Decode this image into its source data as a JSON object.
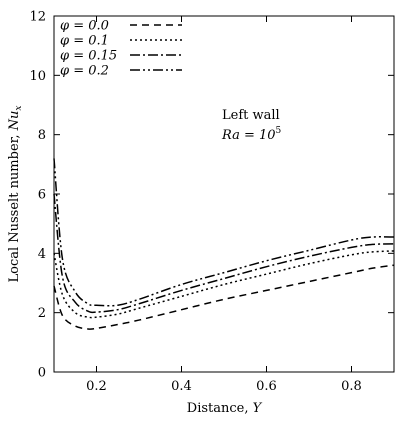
{
  "chart_data": {
    "type": "line",
    "xlabel": "Distance, Y",
    "ylabel": "Local Nusselt number, Nu_x",
    "xlim": [
      0.1,
      0.9
    ],
    "ylim": [
      0,
      12
    ],
    "xticks": [
      0.2,
      0.4,
      0.6,
      0.8
    ],
    "xtick_labels": [
      "0.2",
      "0.4",
      "0.6",
      "0.8"
    ],
    "yticks": [
      0,
      2,
      4,
      6,
      8,
      10,
      12
    ],
    "ytick_labels": [
      "0",
      "2",
      "4",
      "6",
      "8",
      "10",
      "12"
    ],
    "grid": false,
    "legend_position": "top-left",
    "annotations": [
      "Left wall",
      "Ra = 10^5"
    ],
    "series": [
      {
        "name": "φ = 0.0",
        "dash": "dashed",
        "x": [
          0.1,
          0.12,
          0.15,
          0.18,
          0.2,
          0.25,
          0.3,
          0.4,
          0.5,
          0.6,
          0.7,
          0.8,
          0.85,
          0.9
        ],
        "y": [
          2.9,
          1.9,
          1.55,
          1.45,
          1.47,
          1.6,
          1.75,
          2.1,
          2.45,
          2.75,
          3.05,
          3.35,
          3.5,
          3.6
        ]
      },
      {
        "name": "φ = 0.1",
        "dash": "dotted",
        "x": [
          0.1,
          0.12,
          0.15,
          0.18,
          0.2,
          0.25,
          0.3,
          0.4,
          0.5,
          0.6,
          0.7,
          0.8,
          0.85,
          0.9
        ],
        "y": [
          4.0,
          2.6,
          2.0,
          1.85,
          1.85,
          1.95,
          2.15,
          2.55,
          2.95,
          3.3,
          3.65,
          3.95,
          4.05,
          4.08
        ]
      },
      {
        "name": "φ = 0.15",
        "dash": "dash-dot",
        "x": [
          0.1,
          0.12,
          0.15,
          0.18,
          0.2,
          0.25,
          0.3,
          0.4,
          0.5,
          0.6,
          0.7,
          0.8,
          0.85,
          0.9
        ],
        "y": [
          6.0,
          3.2,
          2.35,
          2.05,
          2.02,
          2.1,
          2.3,
          2.75,
          3.15,
          3.55,
          3.9,
          4.2,
          4.3,
          4.32
        ]
      },
      {
        "name": "φ = 0.2",
        "dash": "dash-dot-dot",
        "x": [
          0.1,
          0.12,
          0.15,
          0.18,
          0.2,
          0.25,
          0.3,
          0.4,
          0.5,
          0.6,
          0.7,
          0.8,
          0.85,
          0.9
        ],
        "y": [
          7.2,
          3.8,
          2.7,
          2.3,
          2.25,
          2.25,
          2.45,
          2.95,
          3.35,
          3.75,
          4.1,
          4.45,
          4.55,
          4.55
        ]
      }
    ]
  }
}
